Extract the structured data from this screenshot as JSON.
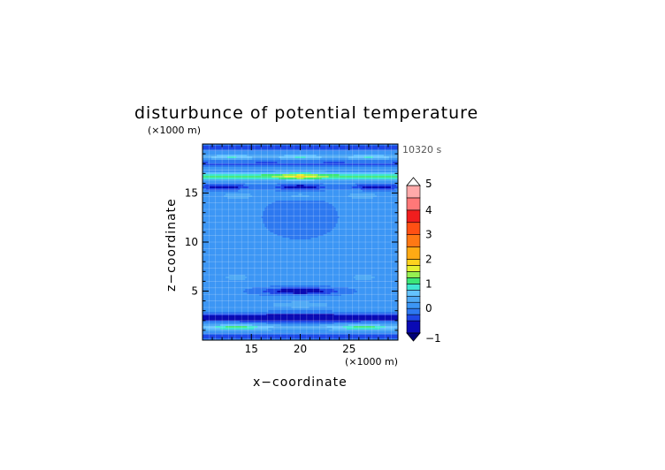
{
  "chart_data": {
    "type": "heatmap",
    "title": "disturbunce of potential temperature",
    "xlabel": "x−coordinate",
    "ylabel": "z−coordinate",
    "x_unit_label": "(×1000 m)",
    "y_unit_label": "(×1000 m)",
    "time_label": "10320 s",
    "xlim": [
      10,
      30
    ],
    "ylim": [
      0,
      20
    ],
    "x_ticks": [
      15,
      20,
      25
    ],
    "y_ticks": [
      5,
      10,
      15
    ],
    "grid": true,
    "colorbar": {
      "placement": "right",
      "ticks": [
        -1,
        0,
        1,
        2,
        3,
        4,
        5
      ],
      "levels": [
        -1,
        -0.5,
        -0.25,
        0,
        0.25,
        0.5,
        0.75,
        1,
        1.25,
        1.5,
        1.75,
        2,
        2.5,
        3,
        3.5,
        4,
        4.5,
        5
      ],
      "colors": [
        "#0a0ab4",
        "#1e46e6",
        "#2d78f0",
        "#3c96f5",
        "#50aaf5",
        "#64c3ff",
        "#40e6d2",
        "#3ce678",
        "#96f050",
        "#e6f032",
        "#ffd21e",
        "#ffaa14",
        "#ff7814",
        "#ff5014",
        "#f01e1e",
        "#ff7878",
        "#ffaaaa"
      ],
      "under_color": "#000078",
      "over_color": "#ffffff"
    }
  }
}
